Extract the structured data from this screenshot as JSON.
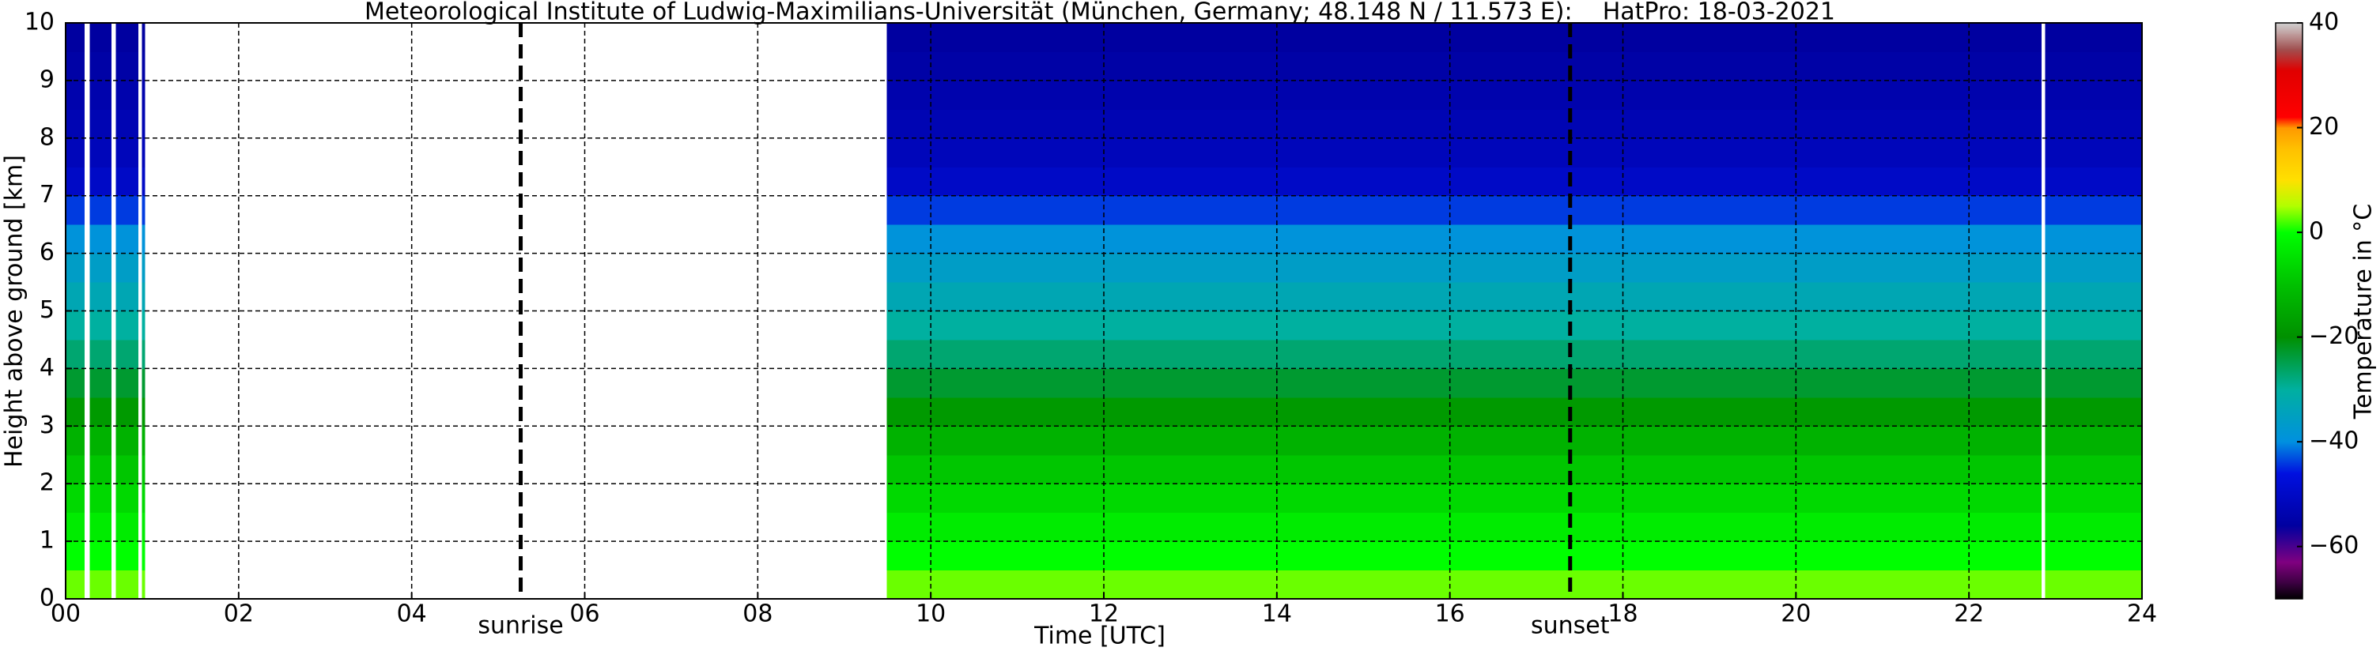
{
  "chart_data": {
    "type": "heatmap",
    "title": "Meteorological Institute of Ludwig-Maximilians-Universität (München, Germany; 48.148 N / 11.573 E):    HatPro: 18-03-2021",
    "x_label": "Time [UTC]",
    "y_label": "Height above ground [km]",
    "colorbar_label": "Temperature in °C",
    "xlim": [
      0,
      24
    ],
    "ylim": [
      0,
      10
    ],
    "xticks": [
      {
        "value": 0,
        "label": "00"
      },
      {
        "value": 2,
        "label": "02"
      },
      {
        "value": 4,
        "label": "04"
      },
      {
        "value": 6,
        "label": "06"
      },
      {
        "value": 8,
        "label": "08"
      },
      {
        "value": 10,
        "label": "10"
      },
      {
        "value": 12,
        "label": "12"
      },
      {
        "value": 14,
        "label": "14"
      },
      {
        "value": 16,
        "label": "16"
      },
      {
        "value": 18,
        "label": "18"
      },
      {
        "value": 20,
        "label": "20"
      },
      {
        "value": 22,
        "label": "22"
      },
      {
        "value": 24,
        "label": "24"
      }
    ],
    "yticks": [
      0,
      1,
      2,
      3,
      4,
      5,
      6,
      7,
      8,
      9,
      10
    ],
    "grid": true,
    "segments": [
      [
        0,
        0.22
      ],
      [
        0.28,
        0.53
      ],
      [
        0.58,
        0.84
      ],
      [
        0.88,
        0.92
      ],
      [
        9.49,
        22.84
      ],
      [
        22.88,
        24
      ]
    ],
    "heights": [
      0,
      0.5,
      1,
      1.5,
      2,
      2.5,
      3,
      3.5,
      4,
      4.5,
      5,
      5.5,
      6,
      6.5,
      7,
      7.5,
      8,
      8.5,
      9,
      9.5,
      10
    ],
    "values": [
      3,
      0,
      -3,
      -6,
      -9,
      -13,
      -18,
      -23,
      -27,
      -30,
      -33,
      -36,
      -39,
      -44,
      -50,
      -52,
      -53,
      -54,
      -55,
      -56
    ],
    "annotations": [
      {
        "text": "sunrise",
        "x": 5.26
      },
      {
        "text": "sunset",
        "x": 17.39
      }
    ],
    "clim": [
      -70,
      40
    ],
    "cticks": [
      {
        "value": -60,
        "label": "−60"
      },
      {
        "value": -40,
        "label": "−40"
      },
      {
        "value": -20,
        "label": "−20"
      },
      0,
      20,
      40
    ],
    "colormap": [
      {
        "value": -70,
        "color": "#000000"
      },
      {
        "value": -67,
        "color": "#3a0040"
      },
      {
        "value": -63,
        "color": "#800080"
      },
      {
        "value": -56,
        "color": "#0000a0"
      },
      {
        "value": -46,
        "color": "#0010e0"
      },
      {
        "value": -40,
        "color": "#0090e0"
      },
      {
        "value": -30,
        "color": "#00b0a0"
      },
      {
        "value": -20,
        "color": "#009000"
      },
      {
        "value": -10,
        "color": "#00c000"
      },
      {
        "value": 0,
        "color": "#00ff00"
      },
      {
        "value": 5,
        "color": "#b0ff00"
      },
      {
        "value": 10,
        "color": "#ffe000"
      },
      {
        "value": 16,
        "color": "#ffc000"
      },
      {
        "value": 20,
        "color": "#ff9800"
      },
      {
        "value": 22,
        "color": "#ff0000"
      },
      {
        "value": 31,
        "color": "#e00000"
      },
      {
        "value": 35,
        "color": "#a05050"
      },
      {
        "value": 38,
        "color": "#c0a0a0"
      },
      {
        "value": 40,
        "color": "#d0d0d0"
      }
    ]
  }
}
